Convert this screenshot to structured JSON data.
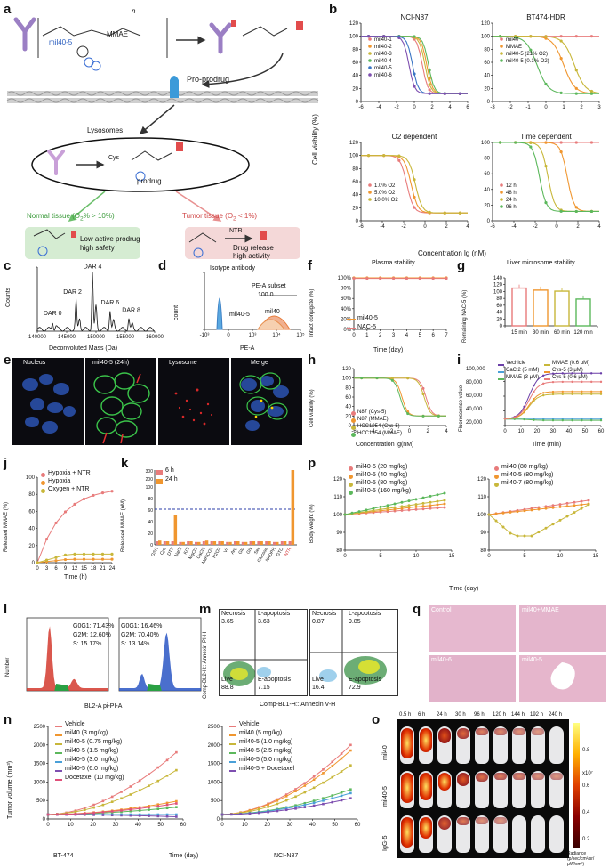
{
  "panel_labels": [
    "a",
    "b",
    "c",
    "d",
    "e",
    "f",
    "g",
    "h",
    "i",
    "j",
    "k",
    "l",
    "m",
    "n",
    "o",
    "p",
    "q"
  ],
  "panel_a": {
    "conjugate_label": "mil40-5",
    "prodrug_label": "Pro-prodrug",
    "lysosome_label": "Lysosomes",
    "prodrug2_label": "prodrug",
    "cys_label": "Cys",
    "mmae_label": "MMAE",
    "normal_title": "Normal tissue (O",
    "normal_sub": "2",
    "normal_tail": "% > 10%)",
    "tumor_title": "Tumor tissue (O",
    "tumor_sub": "2",
    "tumor_tail": " < 1%)",
    "normal_text1": "Low active prodrug",
    "normal_text2": "high safety",
    "tumor_text1": "Drug release",
    "tumor_text2": "high activity",
    "ntr_label": "NTR",
    "n_label": "n"
  },
  "panel_b": {
    "ylabel": "Cell viability (%)",
    "xlabel": "Concentration lg (nM)",
    "charts": [
      {
        "title": "NCI-N87",
        "legend": [
          "mil40-1",
          "mil40-2",
          "mil40-3",
          "mil40-4",
          "mil40-5",
          "mil40-6"
        ],
        "colors": [
          "#e87b7b",
          "#f0962f",
          "#c8b73a",
          "#5cb85c",
          "#3a75c4",
          "#7e4fb0"
        ],
        "ec50": [
          0.9,
          1.4,
          1.2,
          1.6,
          -0.2,
          -0.6
        ],
        "xlim": [
          -6,
          6
        ],
        "xticks": [
          "-6",
          "-4",
          "-2",
          "0",
          "2",
          "4",
          "6"
        ],
        "yticks": [
          "0",
          "20",
          "40",
          "60",
          "80",
          "100",
          "120"
        ]
      },
      {
        "title": "BT474-HDR",
        "legend": [
          "mil40",
          "MMAE",
          "mil40-5 (21% O2)",
          "mil40-5 (0.1% O2)"
        ],
        "colors": [
          "#e87b7b",
          "#f0962f",
          "#c8b73a",
          "#5cb85c"
        ],
        "ec50": [
          9,
          1.0,
          1.6,
          -0.5
        ],
        "xlim": [
          -3,
          3
        ],
        "xticks": [
          "-3",
          "-2",
          "-1",
          "0",
          "1",
          "2",
          "3"
        ],
        "yticks": [
          "0",
          "20",
          "40",
          "60",
          "80",
          "100",
          "120"
        ]
      },
      {
        "title": "O2 dependent",
        "legend": [
          "1.0% O2",
          "5.0% O2",
          "10.0% O2"
        ],
        "colors": [
          "#e87b7b",
          "#f0962f",
          "#c8b73a"
        ],
        "ec50": [
          -1.7,
          -1.3,
          -0.9
        ],
        "xlim": [
          -6,
          4
        ],
        "xticks": [
          "-6",
          "-4",
          "-2",
          "0",
          "2",
          "4"
        ],
        "yticks": [
          "0",
          "20",
          "40",
          "60",
          "80",
          "100",
          "120"
        ]
      },
      {
        "title": "Time dependent",
        "legend": [
          "12 h",
          "48 h",
          "24 h",
          "96 h"
        ],
        "colors": [
          "#e87b7b",
          "#f0962f",
          "#c8b73a",
          "#5cb85c"
        ],
        "ec50": [
          9,
          1.0,
          -0.8,
          -1.6
        ],
        "xlim": [
          -6,
          4
        ],
        "xticks": [
          "-6",
          "-4",
          "-2",
          "0",
          "2",
          "4"
        ],
        "yticks": [
          "0",
          "20",
          "40",
          "60",
          "80",
          "100"
        ]
      }
    ]
  },
  "panel_c": {
    "ylabel": "Counts",
    "xlabel": "Deconvoluted Mass (Da)",
    "xticks": [
      "140000",
      "145000",
      "150000",
      "155000",
      "160000"
    ],
    "peaks": [
      "DAR 0",
      "DAR 2",
      "DAR 4",
      "DAR 6",
      "DAR 8"
    ]
  },
  "panel_d": {
    "ylabel": "count",
    "xlabel": "PE-A",
    "isotype": "Isotype antibody",
    "subset": "PE-A subset",
    "subset_val": "100.0",
    "legend": [
      "mil40-5",
      "mil40"
    ],
    "xticks": [
      "-10³",
      "0",
      "10³",
      "10⁴",
      "10⁵"
    ]
  },
  "panel_e": {
    "titles": [
      "Nucleus",
      "mil40-5 (24h)",
      "Lysosome",
      "Merge"
    ]
  },
  "panel_f": {
    "title": "Plasma stability",
    "ylabel": "Intact conjugate (%)",
    "xlabel": "Time (day)",
    "yticks": [
      "0%",
      "20%",
      "40%",
      "60%",
      "80%",
      "100%"
    ],
    "xticks": [
      "0",
      "1",
      "2",
      "3",
      "4",
      "5",
      "6",
      "7"
    ],
    "legend": [
      "mil40-5",
      "NAC-5"
    ]
  },
  "panel_g": {
    "title": "Liver microsome stability",
    "ylabel": "Remaining NAC-5 (%)",
    "yticks": [
      "0",
      "20",
      "40",
      "60",
      "80",
      "100",
      "120",
      "140"
    ],
    "chart_data": {
      "type": "bar",
      "categories": [
        "15 min",
        "30 min",
        "60 min",
        "120 min"
      ],
      "values": [
        110,
        104,
        101,
        78
      ],
      "colors": [
        "#e87b7b",
        "#f0962f",
        "#c8b73a",
        "#5cb85c"
      ],
      "ylim": [
        0,
        140
      ]
    }
  },
  "panel_h": {
    "ylabel": "Cell viability (%)",
    "xlabel": "Concentration lg(nM)",
    "xticks": [
      "-6",
      "-4",
      "-2",
      "0",
      "2",
      "4"
    ],
    "yticks": [
      "0",
      "20",
      "40",
      "60",
      "80",
      "100",
      "120"
    ],
    "legend": [
      "N87 (Cys-5)",
      "N87 (MMAE)",
      "HCC1954 (Cys-5)",
      "HCC1954 (MMAE)"
    ],
    "colors": [
      "#e87b7b",
      "#f0962f",
      "#c8b73a",
      "#5cb85c"
    ],
    "ec50": [
      1.8,
      -0.8,
      1.6,
      -1.0
    ]
  },
  "panel_i": {
    "ylabel": "Fluorescence value",
    "xlabel": "Time (min)",
    "yticks": [
      "20,000",
      "40,000",
      "60,000",
      "80,000",
      "100,000"
    ],
    "xticks": [
      "0",
      "10",
      "20",
      "30",
      "40",
      "50",
      "60"
    ],
    "legend": [
      "Vechicle",
      "CaCl2 (5 mM)",
      "MMAE (3 μM)",
      "MMAE (0.6 μM)",
      "Cys-5 (3 μM)",
      "Cys-5 (0.6 μM)"
    ],
    "colors": [
      "#6b3fa8",
      "#4aa0d8",
      "#5cb85c",
      "#c8b73a",
      "#f0962f",
      "#e87b7b"
    ],
    "plateau": [
      90000,
      20000,
      18000,
      58000,
      62000,
      77000
    ]
  },
  "panel_j": {
    "ylabel": "Released MMAE (%)",
    "xlabel": "Time (h)",
    "yticks": [
      "0",
      "20",
      "40",
      "60",
      "80",
      "100"
    ],
    "xticks": [
      "0",
      "3",
      "6",
      "9",
      "12",
      "15",
      "18",
      "21",
      "24"
    ],
    "legend": [
      "Hypoxia + NTR",
      "Hypoxia",
      "Oxygen + NTR"
    ],
    "colors": [
      "#e87b7b",
      "#f0962f",
      "#c8b73a"
    ],
    "final": [
      88,
      4,
      10
    ]
  },
  "panel_k": {
    "ylabel": "Released MMAE (nM)",
    "legend": [
      "6 h",
      "24 h"
    ],
    "yticks": [
      "0",
      "20",
      "40",
      "60",
      "80",
      "100",
      "200",
      "300"
    ],
    "categories": [
      "GSH",
      "Cys",
      "DTT",
      "NaCl",
      "KCl",
      "MgCl2",
      "CaCl2",
      "NaHCO3",
      "H2O2",
      "Vc",
      "Arg",
      "Glu",
      "Gly",
      "Ser",
      "Glucose",
      "NADPH",
      "GTO",
      "NTR"
    ],
    "values_24h": [
      6,
      5,
      42,
      4,
      5,
      4,
      6,
      5,
      5,
      4,
      5,
      4,
      5,
      5,
      5,
      4,
      5,
      270
    ]
  },
  "panel_l": {
    "ylabel": "Number",
    "xlabel": "BL2-A pi-PI-A",
    "left": [
      "G0G1: 71.43%",
      "G2M: 12.60%",
      "S: 15.17%"
    ],
    "right": [
      "G0G1: 16.46%",
      "G2M: 70.40%",
      "S: 13.14%"
    ]
  },
  "panel_m": {
    "ylabel": "Comp-BL2-H:: Annexin PI-H",
    "xlabel": "Comp-BL1-H:: Annexin V-H",
    "left": {
      "necrosis": "3.65",
      "lapop": "3.63",
      "live": "88.8",
      "eapop": "7.15"
    },
    "right": {
      "necrosis": "0.87",
      "lapop": "9.85",
      "live": "16.4",
      "eapop": "72.9"
    },
    "labels": {
      "necrosis": "Necrosis",
      "lapop": "L-apoptosis",
      "live": "Live",
      "eapop": "E-apoptosis"
    }
  },
  "panel_n": {
    "ylabel": "Tumor volume (mm³)",
    "xlabel": "Time (day)",
    "left": {
      "title": "BT-474",
      "legend": [
        "Vehicle",
        "mil40 (3 mg/kg)",
        "mil40-5 (0.75 mg/kg)",
        "mil40-5 (1.5 mg/kg)",
        "mil40-5 (3.0 mg/kg)",
        "mil40-5 (6.0 mg/kg)",
        "Docetaxel (10 mg/kg)"
      ],
      "final": [
        1800,
        480,
        1320,
        320,
        120,
        60,
        420
      ]
    },
    "right": {
      "title": "NCI-N87",
      "legend": [
        "Vehicle",
        "mil40 (5 mg/kg)",
        "mil40-5 (1.0 mg/kg)",
        "mil40-5 (2.5 mg/kg)",
        "mil40-5 (5.0 mg/kg)",
        "mil40-5 + Docetaxel"
      ],
      "final": [
        2000,
        1850,
        1450,
        800,
        700,
        560
      ]
    },
    "colors": [
      "#e87b7b",
      "#f0962f",
      "#c8b73a",
      "#5cb85c",
      "#4aa0d8",
      "#7e4fb0",
      "#e0507a"
    ],
    "yticks": [
      "0",
      "500",
      "1000",
      "1500",
      "2000",
      "2500"
    ],
    "xticks": [
      "0",
      "10",
      "20",
      "30",
      "40",
      "50",
      "60"
    ]
  },
  "panel_o": {
    "times": [
      "0.5 h",
      "6 h",
      "24 h",
      "30 h",
      "96 h",
      "120 h",
      "144 h",
      "192 h",
      "240 h"
    ],
    "rows": [
      "mil40",
      "mil40-5",
      "IgG-5"
    ],
    "scale": [
      "0.8",
      "0.6",
      "0.4",
      "0.2"
    ],
    "scale_exp": "x10⁷",
    "scale_label": "Radiance (p/sec/cm²/sr/ μW/cm²)"
  },
  "panel_p": {
    "ylabel": "Body weight (%)",
    "xlabel": "Time (day)",
    "left_legend": [
      "mil40-5 (20 mg/kg)",
      "mil40-5 (40 mg/kg)",
      "mil40-5 (80 mg/kg)",
      "mil40-5 (160 mg/kg)"
    ],
    "right_legend": [
      "mil40 (80 mg/kg)",
      "mil40-5 (80 mg/kg)",
      "mil40-7 (80 mg/kg)"
    ],
    "colors": [
      "#e87b7b",
      "#f0962f",
      "#c8b73a",
      "#5cb85c"
    ],
    "yticks": [
      "80",
      "90",
      "100",
      "110",
      "120"
    ],
    "xticks": [
      "0",
      "5",
      "10",
      "15"
    ]
  },
  "panel_q": {
    "labels": [
      "Control",
      "mil40+MMAE",
      "mil40-6",
      "mil40-5"
    ]
  }
}
